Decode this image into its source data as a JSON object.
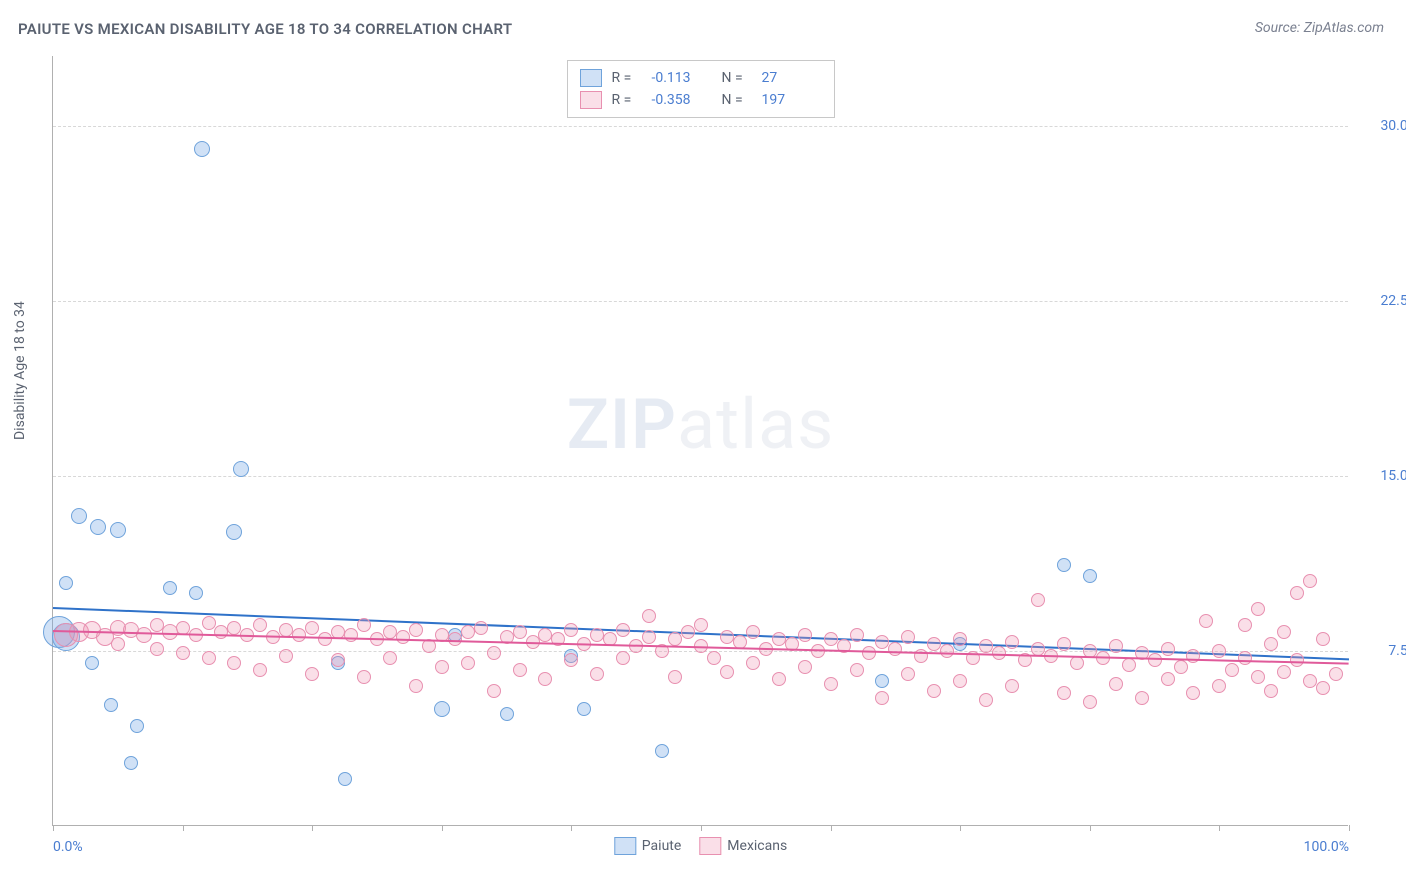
{
  "title": "PAIUTE VS MEXICAN DISABILITY AGE 18 TO 34 CORRELATION CHART",
  "source": "Source: ZipAtlas.com",
  "y_label": "Disability Age 18 to 34",
  "watermark": {
    "zip": "ZIP",
    "atlas": "atlas"
  },
  "chart": {
    "type": "scatter",
    "xlim": [
      0,
      100
    ],
    "ylim": [
      0,
      33
    ],
    "x_ticks": [
      0,
      10,
      20,
      30,
      40,
      50,
      60,
      70,
      80,
      90,
      100
    ],
    "x_tick_labels": {
      "0": "0.0%",
      "100": "100.0%"
    },
    "y_ticks": [
      7.5,
      15.0,
      22.5,
      30.0
    ],
    "y_tick_labels": [
      "7.5%",
      "15.0%",
      "22.5%",
      "30.0%"
    ],
    "grid_color": "#d8d8d8",
    "axis_color": "#b0b0b0",
    "background": "#ffffff"
  },
  "series": [
    {
      "name": "Paiute",
      "color_fill": "rgba(120,170,230,0.35)",
      "color_stroke": "#6fa3db",
      "trend_color": "#2f72c9",
      "R": "-0.113",
      "N": "27",
      "trend": {
        "x1": 0,
        "y1": 9.4,
        "x2": 100,
        "y2": 7.2
      },
      "points": [
        {
          "x": 0.5,
          "y": 8.3,
          "r": 16
        },
        {
          "x": 1.0,
          "y": 8.1,
          "r": 14
        },
        {
          "x": 2.0,
          "y": 13.3,
          "r": 8
        },
        {
          "x": 3.5,
          "y": 12.8,
          "r": 8
        },
        {
          "x": 5.0,
          "y": 12.7,
          "r": 8
        },
        {
          "x": 1.0,
          "y": 10.4,
          "r": 7
        },
        {
          "x": 3.0,
          "y": 7.0,
          "r": 7
        },
        {
          "x": 4.5,
          "y": 5.2,
          "r": 7
        },
        {
          "x": 6.0,
          "y": 2.7,
          "r": 7
        },
        {
          "x": 6.5,
          "y": 4.3,
          "r": 7
        },
        {
          "x": 9.0,
          "y": 10.2,
          "r": 7
        },
        {
          "x": 11.0,
          "y": 10.0,
          "r": 7
        },
        {
          "x": 11.5,
          "y": 29.0,
          "r": 8
        },
        {
          "x": 14.0,
          "y": 12.6,
          "r": 8
        },
        {
          "x": 14.5,
          "y": 15.3,
          "r": 8
        },
        {
          "x": 22.0,
          "y": 7.0,
          "r": 7
        },
        {
          "x": 22.5,
          "y": 2.0,
          "r": 7
        },
        {
          "x": 30.0,
          "y": 5.0,
          "r": 8
        },
        {
          "x": 31.0,
          "y": 8.2,
          "r": 7
        },
        {
          "x": 35.0,
          "y": 4.8,
          "r": 7
        },
        {
          "x": 40.0,
          "y": 7.3,
          "r": 7
        },
        {
          "x": 41.0,
          "y": 5.0,
          "r": 7
        },
        {
          "x": 47.0,
          "y": 3.2,
          "r": 7
        },
        {
          "x": 64.0,
          "y": 6.2,
          "r": 7
        },
        {
          "x": 70.0,
          "y": 7.8,
          "r": 7
        },
        {
          "x": 78.0,
          "y": 11.2,
          "r": 7
        },
        {
          "x": 80.0,
          "y": 10.7,
          "r": 7
        }
      ]
    },
    {
      "name": "Mexicans",
      "color_fill": "rgba(240,150,180,0.30)",
      "color_stroke": "#e890b0",
      "trend_color": "#e05a9a",
      "R": "-0.358",
      "N": "197",
      "trend": {
        "x1": 0,
        "y1": 8.4,
        "x2": 100,
        "y2": 7.0
      },
      "points": [
        {
          "x": 1,
          "y": 8.2,
          "r": 12
        },
        {
          "x": 2,
          "y": 8.3,
          "r": 10
        },
        {
          "x": 3,
          "y": 8.4,
          "r": 9
        },
        {
          "x": 4,
          "y": 8.1,
          "r": 9
        },
        {
          "x": 5,
          "y": 8.5,
          "r": 8
        },
        {
          "x": 5,
          "y": 7.8,
          "r": 7
        },
        {
          "x": 6,
          "y": 8.4,
          "r": 8
        },
        {
          "x": 7,
          "y": 8.2,
          "r": 8
        },
        {
          "x": 8,
          "y": 8.6,
          "r": 7
        },
        {
          "x": 8,
          "y": 7.6,
          "r": 7
        },
        {
          "x": 9,
          "y": 8.3,
          "r": 8
        },
        {
          "x": 10,
          "y": 8.5,
          "r": 7
        },
        {
          "x": 10,
          "y": 7.4,
          "r": 7
        },
        {
          "x": 11,
          "y": 8.2,
          "r": 7
        },
        {
          "x": 12,
          "y": 8.7,
          "r": 7
        },
        {
          "x": 12,
          "y": 7.2,
          "r": 7
        },
        {
          "x": 13,
          "y": 8.3,
          "r": 7
        },
        {
          "x": 14,
          "y": 8.5,
          "r": 7
        },
        {
          "x": 14,
          "y": 7.0,
          "r": 7
        },
        {
          "x": 15,
          "y": 8.2,
          "r": 7
        },
        {
          "x": 16,
          "y": 8.6,
          "r": 7
        },
        {
          "x": 16,
          "y": 6.7,
          "r": 7
        },
        {
          "x": 17,
          "y": 8.1,
          "r": 7
        },
        {
          "x": 18,
          "y": 8.4,
          "r": 7
        },
        {
          "x": 18,
          "y": 7.3,
          "r": 7
        },
        {
          "x": 19,
          "y": 8.2,
          "r": 7
        },
        {
          "x": 20,
          "y": 8.5,
          "r": 7
        },
        {
          "x": 20,
          "y": 6.5,
          "r": 7
        },
        {
          "x": 21,
          "y": 8.0,
          "r": 7
        },
        {
          "x": 22,
          "y": 8.3,
          "r": 7
        },
        {
          "x": 22,
          "y": 7.1,
          "r": 7
        },
        {
          "x": 23,
          "y": 8.2,
          "r": 7
        },
        {
          "x": 24,
          "y": 8.6,
          "r": 7
        },
        {
          "x": 24,
          "y": 6.4,
          "r": 7
        },
        {
          "x": 25,
          "y": 8.0,
          "r": 7
        },
        {
          "x": 26,
          "y": 8.3,
          "r": 7
        },
        {
          "x": 26,
          "y": 7.2,
          "r": 7
        },
        {
          "x": 27,
          "y": 8.1,
          "r": 7
        },
        {
          "x": 28,
          "y": 6.0,
          "r": 7
        },
        {
          "x": 28,
          "y": 8.4,
          "r": 7
        },
        {
          "x": 29,
          "y": 7.7,
          "r": 7
        },
        {
          "x": 30,
          "y": 8.2,
          "r": 7
        },
        {
          "x": 30,
          "y": 6.8,
          "r": 7
        },
        {
          "x": 31,
          "y": 8.0,
          "r": 7
        },
        {
          "x": 32,
          "y": 8.3,
          "r": 7
        },
        {
          "x": 32,
          "y": 7.0,
          "r": 7
        },
        {
          "x": 33,
          "y": 8.5,
          "r": 7
        },
        {
          "x": 34,
          "y": 7.4,
          "r": 7
        },
        {
          "x": 34,
          "y": 5.8,
          "r": 7
        },
        {
          "x": 35,
          "y": 8.1,
          "r": 7
        },
        {
          "x": 36,
          "y": 8.3,
          "r": 7
        },
        {
          "x": 36,
          "y": 6.7,
          "r": 7
        },
        {
          "x": 37,
          "y": 7.9,
          "r": 7
        },
        {
          "x": 38,
          "y": 8.2,
          "r": 7
        },
        {
          "x": 38,
          "y": 6.3,
          "r": 7
        },
        {
          "x": 39,
          "y": 8.0,
          "r": 7
        },
        {
          "x": 40,
          "y": 8.4,
          "r": 7
        },
        {
          "x": 40,
          "y": 7.1,
          "r": 7
        },
        {
          "x": 41,
          "y": 7.8,
          "r": 7
        },
        {
          "x": 42,
          "y": 8.2,
          "r": 7
        },
        {
          "x": 42,
          "y": 6.5,
          "r": 7
        },
        {
          "x": 43,
          "y": 8.0,
          "r": 7
        },
        {
          "x": 44,
          "y": 8.4,
          "r": 7
        },
        {
          "x": 44,
          "y": 7.2,
          "r": 7
        },
        {
          "x": 45,
          "y": 7.7,
          "r": 7
        },
        {
          "x": 46,
          "y": 8.1,
          "r": 7
        },
        {
          "x": 46,
          "y": 9.0,
          "r": 7
        },
        {
          "x": 47,
          "y": 7.5,
          "r": 7
        },
        {
          "x": 48,
          "y": 8.0,
          "r": 7
        },
        {
          "x": 48,
          "y": 6.4,
          "r": 7
        },
        {
          "x": 49,
          "y": 8.3,
          "r": 7
        },
        {
          "x": 50,
          "y": 7.7,
          "r": 7
        },
        {
          "x": 50,
          "y": 8.6,
          "r": 7
        },
        {
          "x": 51,
          "y": 7.2,
          "r": 7
        },
        {
          "x": 52,
          "y": 8.1,
          "r": 7
        },
        {
          "x": 52,
          "y": 6.6,
          "r": 7
        },
        {
          "x": 53,
          "y": 7.9,
          "r": 7
        },
        {
          "x": 54,
          "y": 8.3,
          "r": 7
        },
        {
          "x": 54,
          "y": 7.0,
          "r": 7
        },
        {
          "x": 55,
          "y": 7.6,
          "r": 7
        },
        {
          "x": 56,
          "y": 8.0,
          "r": 7
        },
        {
          "x": 56,
          "y": 6.3,
          "r": 7
        },
        {
          "x": 57,
          "y": 7.8,
          "r": 7
        },
        {
          "x": 58,
          "y": 8.2,
          "r": 7
        },
        {
          "x": 58,
          "y": 6.8,
          "r": 7
        },
        {
          "x": 59,
          "y": 7.5,
          "r": 7
        },
        {
          "x": 60,
          "y": 8.0,
          "r": 7
        },
        {
          "x": 60,
          "y": 6.1,
          "r": 7
        },
        {
          "x": 61,
          "y": 7.7,
          "r": 7
        },
        {
          "x": 62,
          "y": 8.2,
          "r": 7
        },
        {
          "x": 62,
          "y": 6.7,
          "r": 7
        },
        {
          "x": 63,
          "y": 7.4,
          "r": 7
        },
        {
          "x": 64,
          "y": 7.9,
          "r": 7
        },
        {
          "x": 64,
          "y": 5.5,
          "r": 7
        },
        {
          "x": 65,
          "y": 7.6,
          "r": 7
        },
        {
          "x": 66,
          "y": 8.1,
          "r": 7
        },
        {
          "x": 66,
          "y": 6.5,
          "r": 7
        },
        {
          "x": 67,
          "y": 7.3,
          "r": 7
        },
        {
          "x": 68,
          "y": 7.8,
          "r": 7
        },
        {
          "x": 68,
          "y": 5.8,
          "r": 7
        },
        {
          "x": 69,
          "y": 7.5,
          "r": 7
        },
        {
          "x": 70,
          "y": 8.0,
          "r": 7
        },
        {
          "x": 70,
          "y": 6.2,
          "r": 7
        },
        {
          "x": 71,
          "y": 7.2,
          "r": 7
        },
        {
          "x": 72,
          "y": 7.7,
          "r": 7
        },
        {
          "x": 72,
          "y": 5.4,
          "r": 7
        },
        {
          "x": 73,
          "y": 7.4,
          "r": 7
        },
        {
          "x": 74,
          "y": 7.9,
          "r": 7
        },
        {
          "x": 74,
          "y": 6.0,
          "r": 7
        },
        {
          "x": 75,
          "y": 7.1,
          "r": 7
        },
        {
          "x": 76,
          "y": 7.6,
          "r": 7
        },
        {
          "x": 76,
          "y": 9.7,
          "r": 7
        },
        {
          "x": 77,
          "y": 7.3,
          "r": 7
        },
        {
          "x": 78,
          "y": 7.8,
          "r": 7
        },
        {
          "x": 78,
          "y": 5.7,
          "r": 7
        },
        {
          "x": 79,
          "y": 7.0,
          "r": 7
        },
        {
          "x": 80,
          "y": 7.5,
          "r": 7
        },
        {
          "x": 80,
          "y": 5.3,
          "r": 7
        },
        {
          "x": 81,
          "y": 7.2,
          "r": 7
        },
        {
          "x": 82,
          "y": 7.7,
          "r": 7
        },
        {
          "x": 82,
          "y": 6.1,
          "r": 7
        },
        {
          "x": 83,
          "y": 6.9,
          "r": 7
        },
        {
          "x": 84,
          "y": 7.4,
          "r": 7
        },
        {
          "x": 84,
          "y": 5.5,
          "r": 7
        },
        {
          "x": 85,
          "y": 7.1,
          "r": 7
        },
        {
          "x": 86,
          "y": 7.6,
          "r": 7
        },
        {
          "x": 86,
          "y": 6.3,
          "r": 7
        },
        {
          "x": 87,
          "y": 6.8,
          "r": 7
        },
        {
          "x": 88,
          "y": 7.3,
          "r": 7
        },
        {
          "x": 88,
          "y": 5.7,
          "r": 7
        },
        {
          "x": 89,
          "y": 8.8,
          "r": 7
        },
        {
          "x": 90,
          "y": 7.5,
          "r": 7
        },
        {
          "x": 90,
          "y": 6.0,
          "r": 7
        },
        {
          "x": 91,
          "y": 6.7,
          "r": 7
        },
        {
          "x": 92,
          "y": 8.6,
          "r": 7
        },
        {
          "x": 92,
          "y": 7.2,
          "r": 7
        },
        {
          "x": 93,
          "y": 6.4,
          "r": 7
        },
        {
          "x": 93,
          "y": 9.3,
          "r": 7
        },
        {
          "x": 94,
          "y": 7.8,
          "r": 7
        },
        {
          "x": 94,
          "y": 5.8,
          "r": 7
        },
        {
          "x": 95,
          "y": 8.3,
          "r": 7
        },
        {
          "x": 95,
          "y": 6.6,
          "r": 7
        },
        {
          "x": 96,
          "y": 10.0,
          "r": 7
        },
        {
          "x": 96,
          "y": 7.1,
          "r": 7
        },
        {
          "x": 97,
          "y": 10.5,
          "r": 7
        },
        {
          "x": 97,
          "y": 6.2,
          "r": 7
        },
        {
          "x": 98,
          "y": 8.0,
          "r": 7
        },
        {
          "x": 98,
          "y": 5.9,
          "r": 7
        },
        {
          "x": 99,
          "y": 6.5,
          "r": 7
        }
      ]
    }
  ],
  "legend_bottom": [
    {
      "label": "Paiute",
      "fill": "rgba(120,170,230,0.35)",
      "stroke": "#6fa3db"
    },
    {
      "label": "Mexicans",
      "fill": "rgba(240,150,180,0.30)",
      "stroke": "#e890b0"
    }
  ]
}
